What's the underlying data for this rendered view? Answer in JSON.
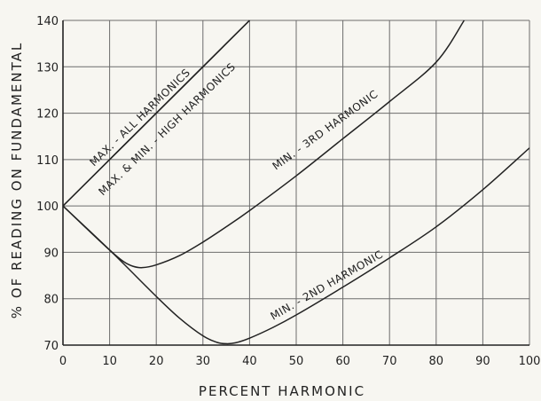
{
  "chart_data": {
    "type": "line",
    "xlabel": "PERCENT HARMONIC",
    "ylabel": "% OF READING ON FUNDAMENTAL",
    "xlim": [
      0,
      100
    ],
    "ylim": [
      70,
      140
    ],
    "xticks": [
      0,
      10,
      20,
      30,
      40,
      50,
      60,
      70,
      80,
      90,
      100
    ],
    "yticks": [
      70,
      80,
      90,
      100,
      110,
      120,
      130,
      140
    ],
    "grid": true,
    "series": [
      {
        "name": "MAX. - ALL HARMONICS",
        "x": [
          0,
          10,
          20,
          30,
          40
        ],
        "y": [
          100,
          110,
          120,
          130,
          140
        ]
      },
      {
        "name": "MAX. & MIN. - HIGH HARMONICS",
        "x": [
          0,
          10,
          20,
          30,
          40
        ],
        "y": [
          100,
          110,
          120,
          130,
          140
        ]
      },
      {
        "name": "MIN. - 3RD HARMONIC",
        "x": [
          0,
          5,
          10,
          13,
          15,
          17,
          20,
          25,
          30,
          35,
          40,
          50,
          60,
          70,
          80,
          86
        ],
        "y": [
          100,
          95.2,
          90.5,
          88,
          87,
          86.7,
          87.3,
          89.3,
          92.2,
          95.5,
          99,
          106.5,
          114.5,
          122.5,
          131,
          140
        ]
      },
      {
        "name": "MIN. - 2ND HARMONIC",
        "x": [
          0,
          10,
          20,
          25,
          30,
          33,
          35,
          37,
          40,
          45,
          50,
          60,
          70,
          80,
          90,
          100
        ],
        "y": [
          100,
          90.5,
          80.5,
          75.8,
          72,
          70.6,
          70.3,
          70.5,
          71.5,
          73.8,
          76.5,
          82.5,
          88.8,
          95.5,
          103.5,
          112.5
        ]
      }
    ],
    "annotations": [
      "MAX. - ALL HARMONICS",
      "MAX. & MIN. - HIGH HARMONICS",
      "MIN. - 3RD HARMONIC",
      "MIN. - 2ND HARMONIC"
    ]
  }
}
